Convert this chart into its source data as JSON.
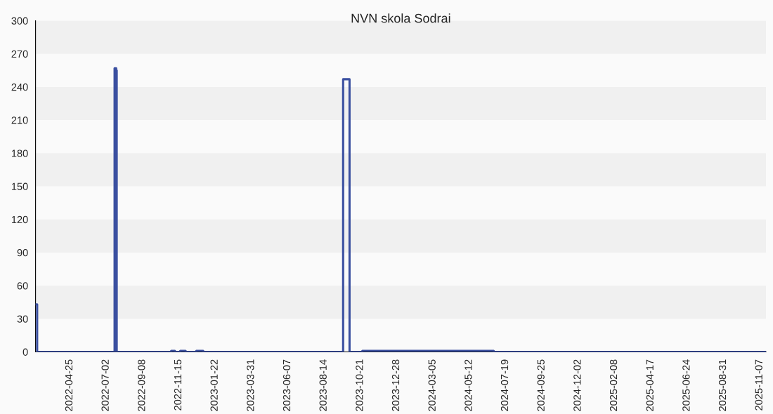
{
  "chart_data": {
    "type": "step",
    "title": "NVN skola Sodrai",
    "x": [
      "2022-02-20",
      "2022-02-23",
      "2022-07-18",
      "2022-07-21",
      "2022-07-22",
      "2022-11-01",
      "2022-11-08",
      "2022-11-18",
      "2022-11-28",
      "2022-12-18",
      "2022-12-31",
      "2023-09-19",
      "2023-10-01",
      "2023-10-25",
      "2024-06-27",
      "2025-11-19"
    ],
    "series": [
      {
        "color": "#3a4fa0",
        "values": [
          43,
          0,
          257,
          255,
          0,
          1,
          0,
          1,
          0,
          1,
          0,
          247,
          0,
          1,
          0,
          0
        ]
      }
    ],
    "xlim": [
      "2022-02-20",
      "2025-11-19"
    ],
    "xticks": [
      "2022-04-25",
      "2022-07-02",
      "2022-09-08",
      "2022-11-15",
      "2023-01-22",
      "2023-03-31",
      "2023-06-07",
      "2023-08-14",
      "2023-10-21",
      "2023-12-28",
      "2024-03-05",
      "2024-05-12",
      "2024-07-19",
      "2024-09-25",
      "2024-12-02",
      "2025-02-08",
      "2025-04-17",
      "2025-06-24",
      "2025-08-31",
      "2025-11-07"
    ],
    "ylim": [
      0,
      300
    ],
    "yticks": [
      0,
      30,
      60,
      90,
      120,
      150,
      180,
      210,
      240,
      270,
      300
    ],
    "legend": false
  }
}
